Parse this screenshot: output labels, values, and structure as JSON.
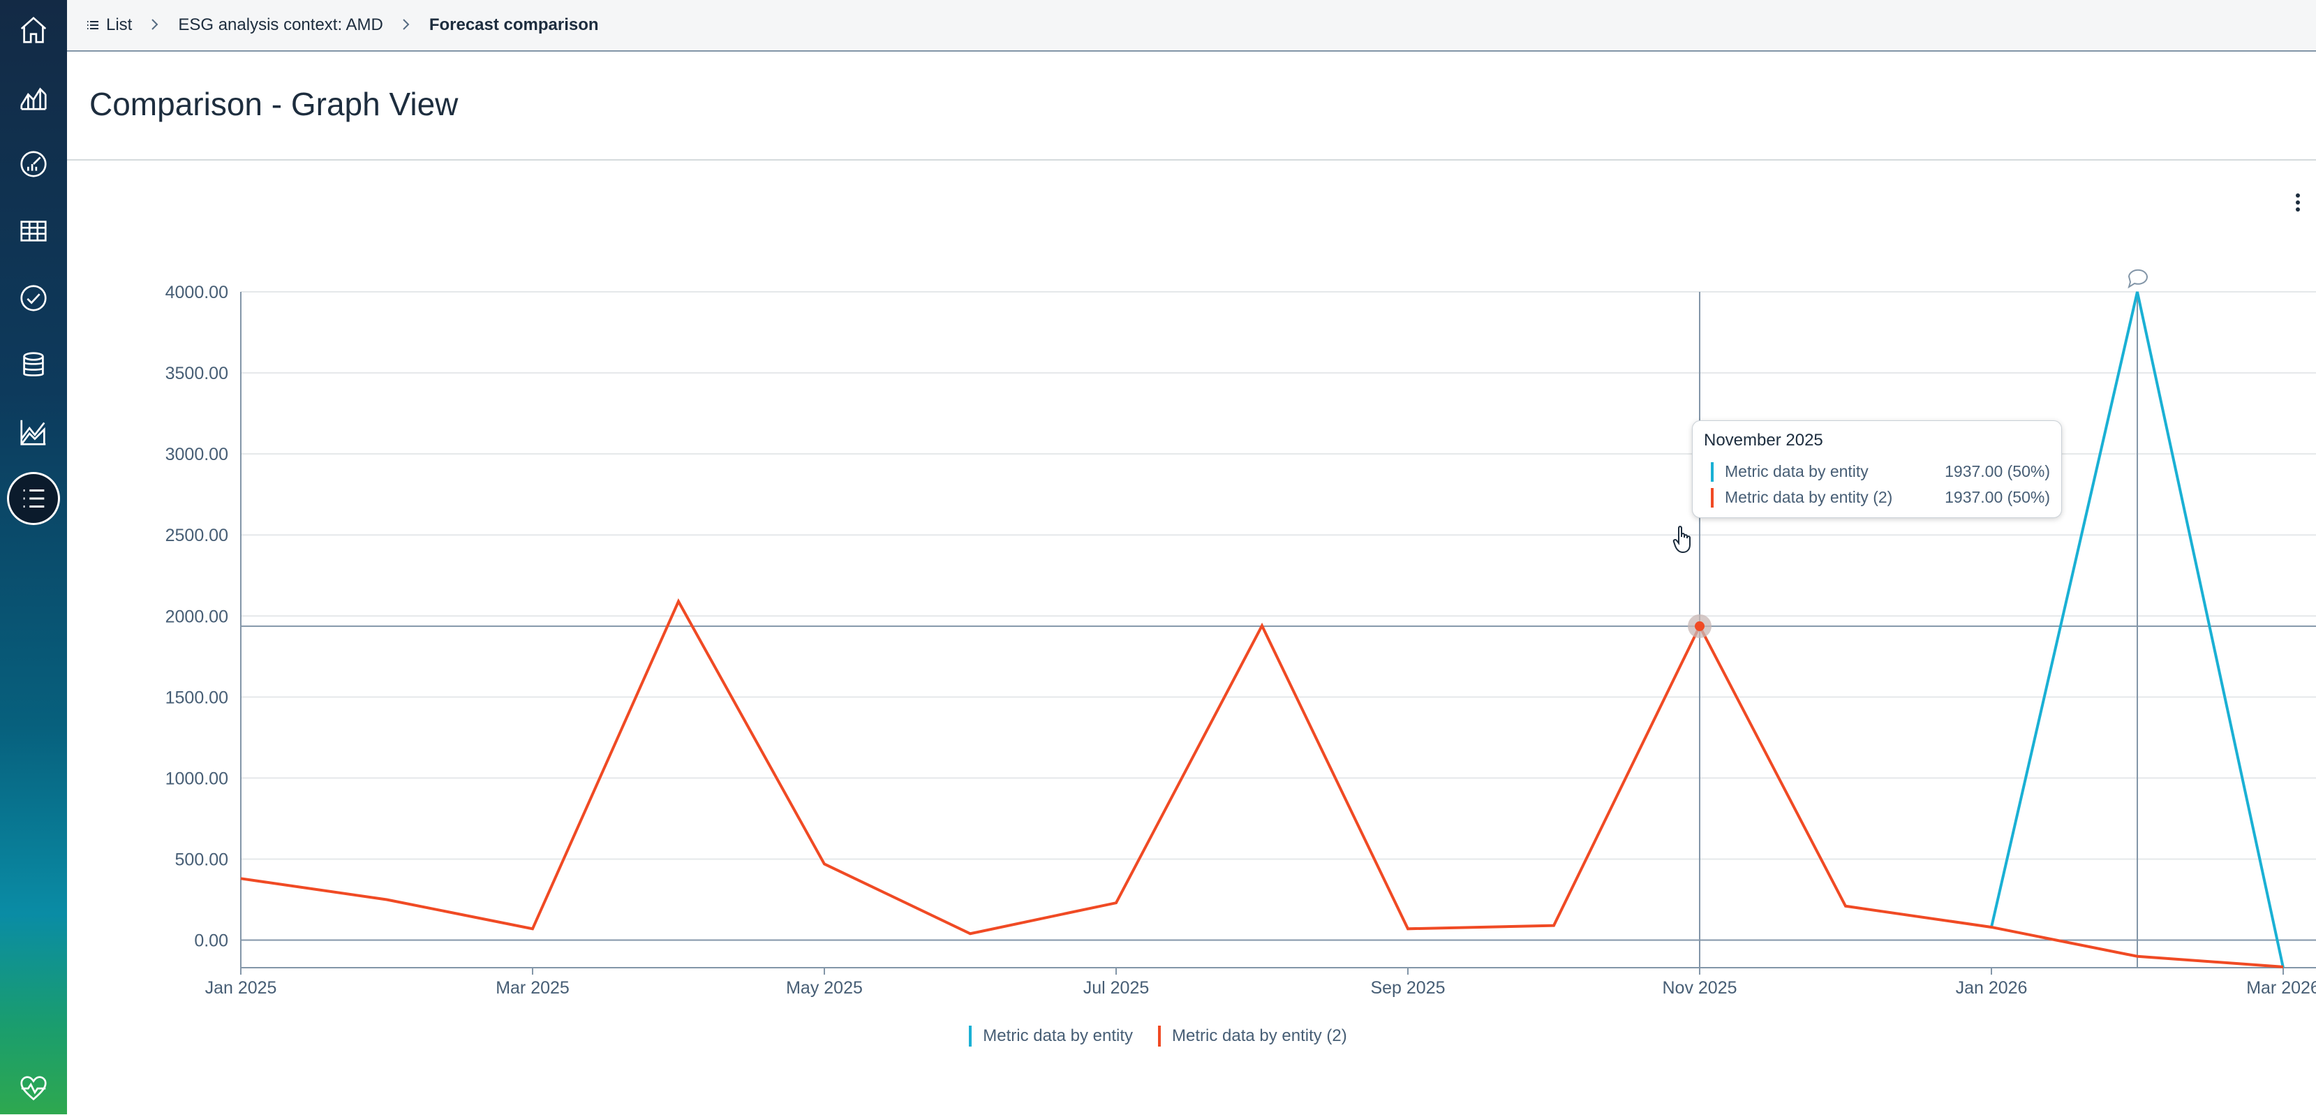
{
  "breadcrumb": {
    "list_icon": "list-icon",
    "items": [
      "List",
      "ESG analysis context: AMD",
      "Forecast comparison"
    ],
    "separator": ">"
  },
  "page": {
    "title": "Comparison - Graph View"
  },
  "sidebar": {
    "items": [
      {
        "icon": "home-icon"
      },
      {
        "icon": "area-chart-icon"
      },
      {
        "icon": "gauge-icon"
      },
      {
        "icon": "table-icon"
      },
      {
        "icon": "check-circle-icon"
      },
      {
        "icon": "database-icon"
      },
      {
        "icon": "line-chart-icon"
      },
      {
        "icon": "list-icon",
        "active": true
      },
      {
        "icon": "heart-pulse-icon"
      }
    ]
  },
  "tooltip": {
    "title": "November 2025",
    "rows": [
      {
        "name": "Metric data by entity",
        "value": "1937.00 (50%)",
        "color": "#1ab0d4"
      },
      {
        "name": "Metric data by entity (2)",
        "value": "1937.00 (50%)",
        "color": "#f04a24"
      }
    ]
  },
  "chart_data": {
    "type": "line",
    "x": [
      "2025-01",
      "2025-02",
      "2025-03",
      "2025-04",
      "2025-05",
      "2025-06",
      "2025-07",
      "2025-08",
      "2025-09",
      "2025-10",
      "2025-11",
      "2025-12",
      "2026-01",
      "2026-02",
      "2026-03"
    ],
    "x_tick_labels": [
      "Jan 2025",
      "Mar 2025",
      "May 2025",
      "Jul 2025",
      "Sep 2025",
      "Nov 2025",
      "Jan 2026",
      "Mar 2026"
    ],
    "y_tick_labels": [
      "4000.00",
      "3500.00",
      "3000.00",
      "2500.00",
      "2000.00",
      "1500.00",
      "1000.00",
      "500.00",
      "0.00"
    ],
    "ylim": [
      -170,
      4000
    ],
    "series": [
      {
        "name": "Metric data by entity",
        "color": "#1ab0d4",
        "points": [
          [
            "2026-01",
            80
          ],
          [
            "2026-02",
            4000
          ],
          [
            "2026-03",
            -170
          ]
        ]
      },
      {
        "name": "Metric data by entity (2)",
        "color": "#f04a24",
        "points": [
          [
            "2025-01",
            380
          ],
          [
            "2025-02",
            250
          ],
          [
            "2025-03",
            70
          ],
          [
            "2025-04",
            2090
          ],
          [
            "2025-05",
            470
          ],
          [
            "2025-06",
            40
          ],
          [
            "2025-07",
            230
          ],
          [
            "2025-08",
            1940
          ],
          [
            "2025-09",
            70
          ],
          [
            "2025-10",
            90
          ],
          [
            "2025-11",
            1937
          ],
          [
            "2025-12",
            210
          ],
          [
            "2026-01",
            80
          ],
          [
            "2026-02",
            -100
          ],
          [
            "2026-03",
            -165
          ]
        ]
      }
    ],
    "highlight_x": "2025-11",
    "grid": true,
    "legend_position": "bottom"
  }
}
